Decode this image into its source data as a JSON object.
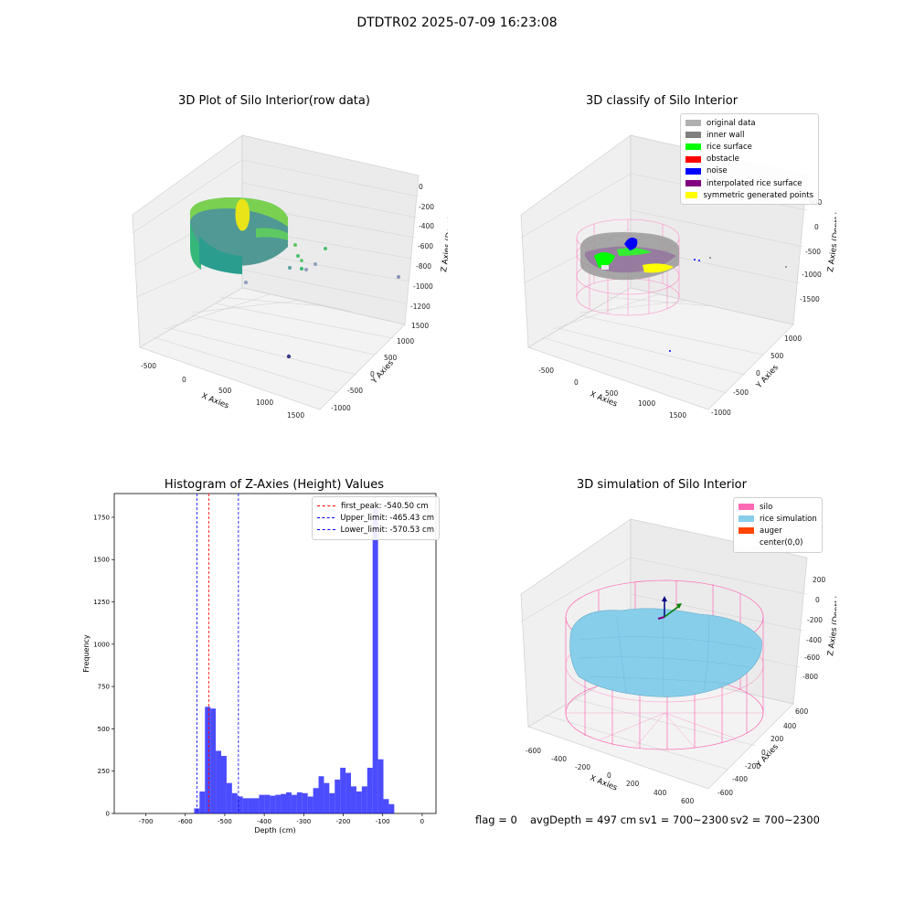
{
  "suptitle": "DTDTR02 2025-07-09 16:23:08",
  "charts": {
    "raw": {
      "title": "3D Plot of Silo Interior(row data)",
      "xlabel": "X Axies",
      "ylabel": "Y Axies",
      "zlabel": "Z Axies (Depth)",
      "xticks": [
        "-500",
        "0",
        "500",
        "1000",
        "1500"
      ],
      "yticks": [
        "1500",
        "1000",
        "500",
        "0",
        "-500",
        "-1000"
      ],
      "zticks": [
        "0",
        "-200",
        "-400",
        "-600",
        "-800",
        "-1000",
        "-1200"
      ]
    },
    "classify": {
      "title": "3D classify of Silo Interior",
      "xlabel": "X Axies",
      "ylabel": "Y Axies",
      "zlabel": "Z Axies (Depth)",
      "xticks": [
        "-500",
        "0",
        "500",
        "1000",
        "1500"
      ],
      "yticks": [
        "1000",
        "500",
        "0",
        "-500",
        "-1000"
      ],
      "zticks": [
        "500",
        "0",
        "-500",
        "-1000",
        "-1500"
      ],
      "legend": [
        {
          "label": "original data",
          "color": "#b0b0b0"
        },
        {
          "label": "inner wall",
          "color": "#808080"
        },
        {
          "label": "rice surface",
          "color": "#00ff00"
        },
        {
          "label": "obstacle",
          "color": "#ff0000"
        },
        {
          "label": "noise",
          "color": "#0000ff"
        },
        {
          "label": "interpolated rice surface",
          "color": "#800080"
        },
        {
          "label": "symmetric generated points",
          "color": "#ffff00"
        }
      ]
    },
    "simulation": {
      "title": "3D simulation of Silo Interior",
      "xlabel": "X Axies",
      "ylabel": "Y Axies",
      "zlabel": "Z Axies (Depth)",
      "xticks": [
        "-600",
        "-400",
        "-200",
        "0",
        "200",
        "400",
        "600"
      ],
      "yticks": [
        "600",
        "400",
        "200",
        "0",
        "-200",
        "-400",
        "-600"
      ],
      "zticks": [
        "200",
        "0",
        "-200",
        "-400",
        "-600",
        "-800"
      ],
      "legend": [
        {
          "label": "silo",
          "color": "#ff69b4"
        },
        {
          "label": "rice simulation",
          "color": "#87ceeb"
        },
        {
          "label": "auger",
          "color": "#ff4500"
        },
        {
          "label": "center(0,0)",
          "color": "#ffffff"
        }
      ]
    }
  },
  "chart_data": {
    "type": "bar",
    "title": "Histogram of Z-Axies (Height) Values",
    "xlabel": "Depth (cm)",
    "ylabel": "Frequency",
    "xlim": [
      -780,
      35
    ],
    "ylim": [
      0,
      1890
    ],
    "xticks": [
      -700,
      -600,
      -500,
      -400,
      -300,
      -200,
      -100,
      0
    ],
    "yticks": [
      0,
      250,
      500,
      750,
      1000,
      1250,
      1500,
      1750
    ],
    "bar_color": "#0000ff",
    "bin_width": 13.7,
    "bin_starts": [
      -577.6,
      -563.9,
      -550.2,
      -536.5,
      -522.8,
      -509.1,
      -495.4,
      -481.7,
      -468.0,
      -454.3,
      -440.6,
      -426.9,
      -413.2,
      -399.5,
      -385.8,
      -372.1,
      -358.4,
      -344.7,
      -331.0,
      -317.3,
      -303.6,
      -289.9,
      -276.2,
      -262.5,
      -248.8,
      -235.1,
      -221.4,
      -207.7,
      -194.0,
      -180.3,
      -166.6,
      -152.9,
      -139.2,
      -125.5,
      -111.8,
      -98.1,
      -84.4,
      -70.7,
      -57.0,
      -43.3,
      -29.6,
      -15.9,
      -2.2
    ],
    "values": [
      30,
      130,
      630,
      620,
      370,
      340,
      180,
      120,
      100,
      90,
      90,
      90,
      110,
      110,
      105,
      110,
      115,
      125,
      110,
      125,
      120,
      100,
      150,
      220,
      180,
      120,
      200,
      270,
      240,
      160,
      130,
      160,
      270,
      1800,
      320,
      85,
      55,
      0,
      0,
      0,
      0,
      0,
      0
    ],
    "vlines": [
      {
        "label": "first_peak: -540.50 cm",
        "x": -540.5,
        "color": "#ff0000"
      },
      {
        "label": "Upper_limit: -465.43 cm",
        "x": -465.43,
        "color": "#0000ff"
      },
      {
        "label": "Lower_limit: -570.53 cm",
        "x": -570.53,
        "color": "#0000ff"
      }
    ],
    "legend_position": "top-right"
  },
  "footer": {
    "flag": "flag = 0",
    "avg": "avgDepth = 497 cm",
    "sv1": "sv1 = 700~2300",
    "sv2": "sv2 = 700~2300"
  }
}
